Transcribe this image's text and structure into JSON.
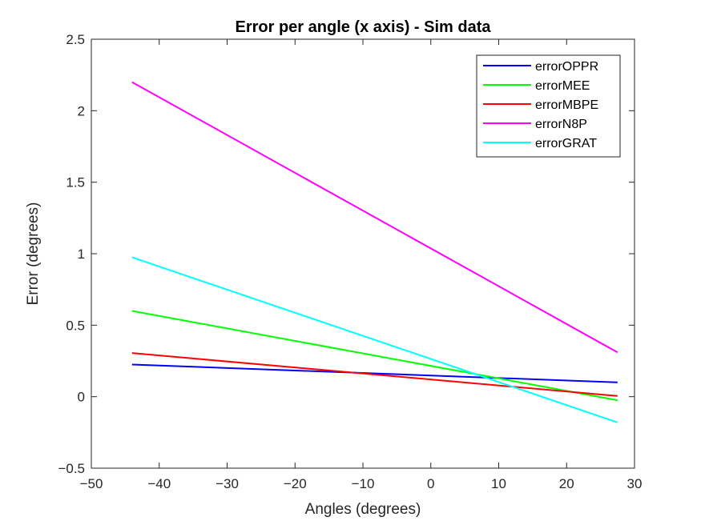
{
  "chart_data": {
    "type": "line",
    "title": "Error per angle (x axis)  - Sim data",
    "xlabel": "Angles (degrees)",
    "ylabel": "Error (degrees)",
    "xlim": [
      -50,
      30
    ],
    "ylim": [
      -0.5,
      2.5
    ],
    "xticks": [
      -50,
      -40,
      -30,
      -20,
      -10,
      0,
      10,
      20,
      30
    ],
    "xtick_labels": [
      "−50",
      "−40",
      "−30",
      "−20",
      "−10",
      "0",
      "10",
      "20",
      "30"
    ],
    "yticks": [
      -0.5,
      0,
      0.5,
      1,
      1.5,
      2,
      2.5
    ],
    "ytick_labels": [
      "−0.5",
      "0",
      "0.5",
      "1",
      "1.5",
      "2",
      "2.5"
    ],
    "grid": false,
    "legend_position": "top-right",
    "series": [
      {
        "name": "errorOPPR",
        "color": "#0000ff",
        "x": [
          -44,
          27.5
        ],
        "y": [
          0.225,
          0.1
        ]
      },
      {
        "name": "errorMEE",
        "color": "#00ff00",
        "x": [
          -44,
          27.5
        ],
        "y": [
          0.6,
          -0.025
        ]
      },
      {
        "name": "errorMBPE",
        "color": "#ff0000",
        "x": [
          -44,
          27.5
        ],
        "y": [
          0.305,
          0.005
        ]
      },
      {
        "name": "errorN8P",
        "color": "#ff00ff",
        "x": [
          -44,
          27.5
        ],
        "y": [
          2.2,
          0.31
        ]
      },
      {
        "name": "errorGRAT",
        "color": "#00ffff",
        "x": [
          -44,
          27.5
        ],
        "y": [
          0.975,
          -0.18
        ]
      }
    ]
  }
}
